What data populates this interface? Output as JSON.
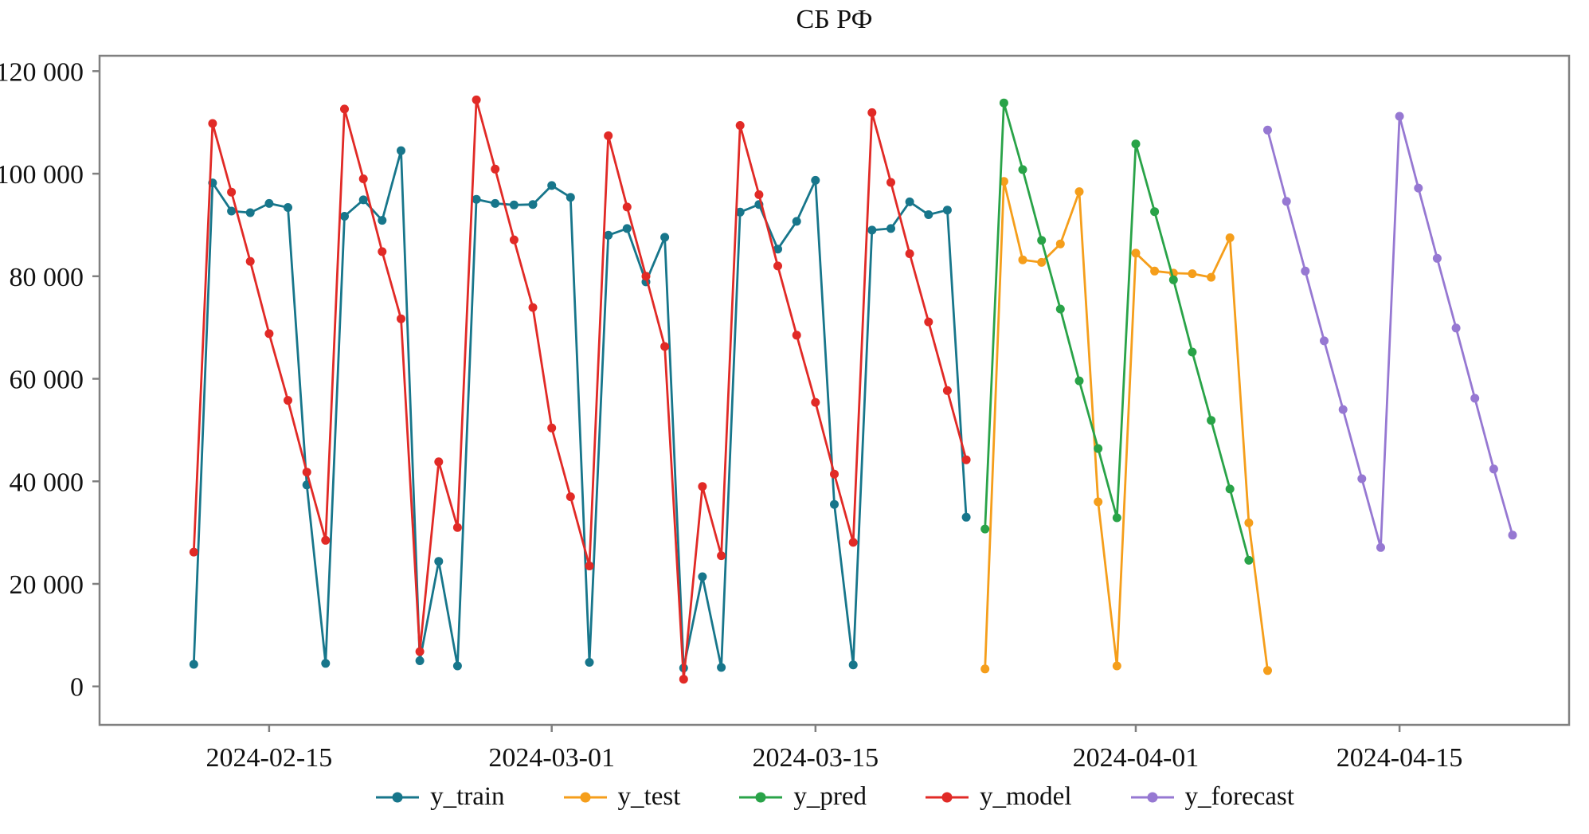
{
  "figure": {
    "background": "#ffffff",
    "frame_color": "#808080",
    "text_color": "#111111"
  },
  "chart_data": {
    "type": "line",
    "title": "СБ РФ",
    "xlabel": "",
    "ylabel": "",
    "grid": false,
    "legend_position": "bottom",
    "ylim": [
      -7500,
      123000
    ],
    "x_domain": [
      "2024-02-06",
      "2024-04-24"
    ],
    "y_ticks": [
      {
        "value": 0,
        "label": "0"
      },
      {
        "value": 20000,
        "label": "20 000"
      },
      {
        "value": 40000,
        "label": "40 000"
      },
      {
        "value": 60000,
        "label": "60 000"
      },
      {
        "value": 80000,
        "label": "80 000"
      },
      {
        "value": 100000,
        "label": "100 000"
      },
      {
        "value": 120000,
        "label": "120 000"
      }
    ],
    "x_ticks": [
      {
        "date": "2024-02-15",
        "label": "2024-02-15"
      },
      {
        "date": "2024-03-01",
        "label": "2024-03-01"
      },
      {
        "date": "2024-03-15",
        "label": "2024-03-15"
      },
      {
        "date": "2024-04-01",
        "label": "2024-04-01"
      },
      {
        "date": "2024-04-15",
        "label": "2024-04-15"
      }
    ],
    "series": [
      {
        "name": "y_train",
        "color": "#17768b",
        "start": "2024-02-11",
        "values": [
          4300,
          98200,
          92700,
          92400,
          94200,
          93400,
          39300,
          4500,
          91700,
          94900,
          90900,
          104500,
          5000,
          24400,
          4000,
          95000,
          94200,
          93900,
          94000,
          97700,
          95400,
          4700,
          88000,
          89300,
          78900,
          87600,
          3600,
          21400,
          3700,
          92500,
          94000,
          85300,
          90700,
          98700,
          35500,
          4200,
          89000,
          89300,
          94500,
          92000,
          92900,
          33000
        ]
      },
      {
        "name": "y_test",
        "color": "#f59e1b",
        "start": "2024-03-24",
        "values": [
          3400,
          98500,
          83200,
          82700,
          86300,
          96500,
          36000,
          4000,
          84500,
          81000,
          80600,
          80500,
          79800,
          87500,
          31900,
          3100
        ]
      },
      {
        "name": "y_pred",
        "color": "#29a348",
        "start": "2024-03-24",
        "values": [
          30700,
          113800,
          100800,
          87000,
          73600,
          59600,
          46400,
          32900,
          105800,
          92600,
          79300,
          65200,
          51900,
          38500,
          24600
        ]
      },
      {
        "name": "y_model",
        "color": "#e12a26",
        "start": "2024-02-11",
        "values": [
          26200,
          109800,
          96400,
          82900,
          68800,
          55800,
          41800,
          28500,
          112600,
          99000,
          84800,
          71700,
          6800,
          43800,
          31000,
          114400,
          100900,
          87100,
          73900,
          50400,
          37000,
          23500,
          107400,
          93500,
          80000,
          66300,
          1400,
          39000,
          25500,
          109400,
          95900,
          82000,
          68500,
          55400,
          41400,
          28100,
          111900,
          98300,
          84400,
          71100,
          57700,
          44200
        ]
      },
      {
        "name": "y_forecast",
        "color": "#9678d2",
        "start": "2024-04-08",
        "values": [
          108500,
          94600,
          81000,
          67400,
          54000,
          40500,
          27100,
          111200,
          97200,
          83500,
          69900,
          56200,
          42400,
          29500
        ]
      }
    ]
  }
}
